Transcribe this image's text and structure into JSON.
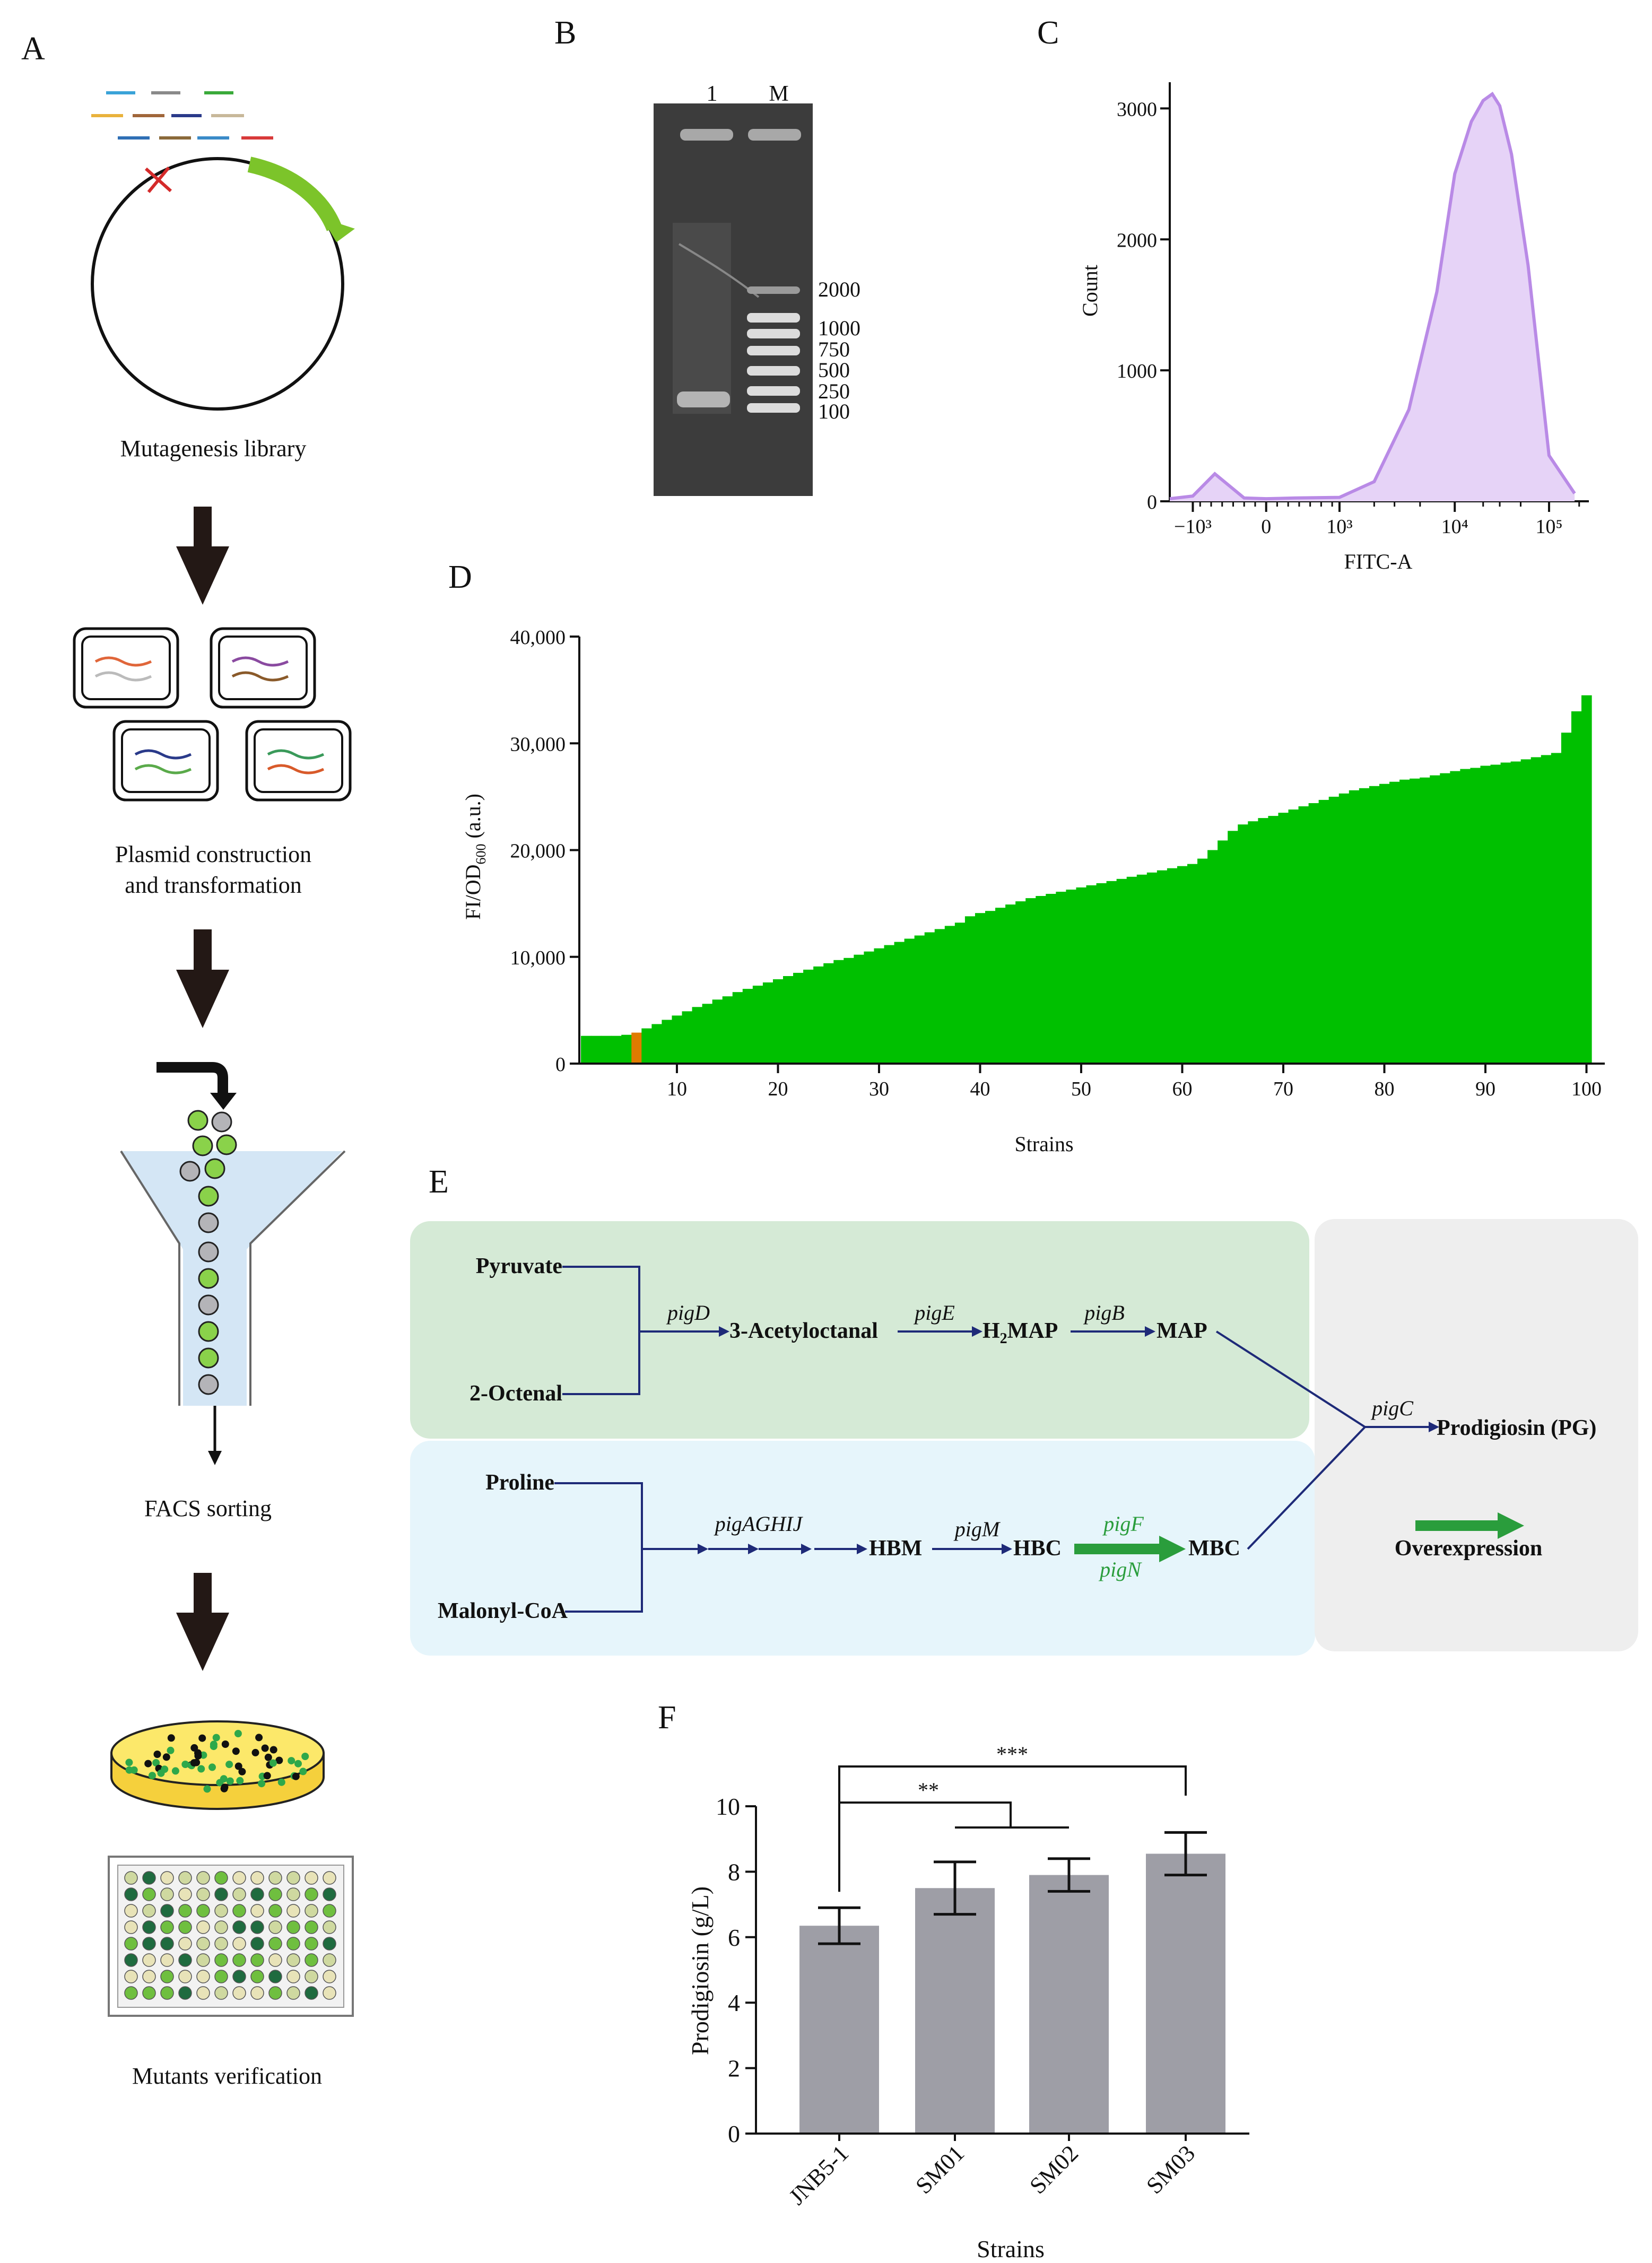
{
  "colors": {
    "ink": "#111111",
    "panel_a_arrow": "#231815",
    "gel_bg": "#3c3c3c",
    "flow_line": "#b98ae6",
    "flow_fill": "#e6d3f7",
    "bar_green": "#00c000",
    "bar_highlight": "#e07b00",
    "pathway_green_box": "#d5ead6",
    "pathway_blue_box": "#e6f5fb",
    "pathway_gray_box": "#eeeeee",
    "pathway_arrow": "#1e2a78",
    "overexpression": "#2a9d3c",
    "bar_gray": "#9e9ea6"
  },
  "panel_labels": {
    "a": "A",
    "b": "B",
    "c": "C",
    "d": "D",
    "e": "E",
    "f": "F"
  },
  "panel_a": {
    "step1": "Mutagenesis library",
    "step2_line1": "Plasmid construction",
    "step2_line2": "and transformation",
    "step3": "FACS sorting",
    "step4": "Mutants verification",
    "fragment_colors": [
      "#3aa3d8",
      "#8a8a8a",
      "#3aaa3a",
      "#e9b23c",
      "#a0663a",
      "#2a3a8a",
      "#c8b89a",
      "#2f6fb5",
      "#8a6a3a",
      "#3a8ac8",
      "#d83a3a"
    ],
    "plate_well_colors": [
      "#1f6b3f",
      "#6fbf3f",
      "#cfd9a0",
      "#e8e3b8"
    ]
  },
  "panel_b": {
    "lane_labels": [
      "1",
      "M"
    ],
    "marker_labels": [
      "2000",
      "1000",
      "750",
      "500",
      "250",
      "100"
    ]
  },
  "panel_c": {
    "chart_data": {
      "type": "area",
      "xlabel": "FITC-A",
      "ylabel": "Count",
      "y_ticks": [
        "0",
        "1000",
        "2000",
        "3000"
      ],
      "x_ticks": [
        "−10³",
        "0",
        "10³",
        "10⁴",
        "10⁵"
      ],
      "ylim": [
        0,
        3000
      ],
      "x": [
        -1500,
        -1000,
        -700,
        -300,
        0,
        400,
        1000,
        2000,
        4000,
        7000,
        10000,
        15000,
        20000,
        25000,
        30000,
        40000,
        60000,
        100000,
        180000
      ],
      "values": [
        20,
        40,
        210,
        25,
        20,
        25,
        30,
        150,
        700,
        1600,
        2500,
        2900,
        3060,
        3110,
        3020,
        2650,
        1800,
        350,
        60
      ]
    }
  },
  "panel_d": {
    "chart_data": {
      "type": "bar",
      "xlabel": "Strains",
      "ylabel": "FI/OD",
      "ylabel_sub": "600",
      "ylabel_unit": " (a.u.)",
      "y_ticks": [
        "0",
        "10,000",
        "20,000",
        "30,000",
        "40,000"
      ],
      "x_ticks": [
        "10",
        "20",
        "30",
        "40",
        "50",
        "60",
        "70",
        "80",
        "90",
        "100"
      ],
      "ylim": [
        0,
        40000
      ],
      "highlight_strain": 6,
      "values": [
        2600,
        2600,
        2600,
        2600,
        2700,
        2900,
        3300,
        3700,
        4100,
        4500,
        4900,
        5300,
        5600,
        6000,
        6300,
        6700,
        7000,
        7300,
        7600,
        7900,
        8200,
        8500,
        8800,
        9100,
        9400,
        9700,
        9900,
        10200,
        10500,
        10800,
        11100,
        11400,
        11700,
        12000,
        12300,
        12600,
        12900,
        13200,
        13800,
        14100,
        14300,
        14600,
        14900,
        15200,
        15500,
        15700,
        15900,
        16100,
        16300,
        16500,
        16700,
        16900,
        17100,
        17300,
        17500,
        17700,
        17900,
        18100,
        18300,
        18500,
        18700,
        19200,
        20000,
        20900,
        21800,
        22400,
        22700,
        23000,
        23200,
        23500,
        23800,
        24100,
        24400,
        24700,
        25000,
        25300,
        25600,
        25800,
        26000,
        26200,
        26400,
        26600,
        26700,
        26800,
        27000,
        27200,
        27400,
        27600,
        27700,
        27900,
        28000,
        28200,
        28300,
        28500,
        28700,
        28900,
        29100,
        31000,
        33000,
        34500
      ]
    }
  },
  "panel_e": {
    "green_box": {
      "substrate1": "Pyruvate",
      "substrate2": "2-Octenal",
      "enzyme1": "pigD",
      "intermediate1": "3-Acetyloctanal",
      "enzyme2": "pigE",
      "intermediate2_main": "H",
      "intermediate2_sub": "2",
      "intermediate2_rest": "MAP",
      "enzyme3": "pigB",
      "intermediate3": "MAP"
    },
    "blue_box": {
      "substrate1": "Proline",
      "substrate2": "Malonyl-CoA",
      "enzyme1": "pigAGHIJ",
      "intermediate1": "HBM",
      "enzyme2": "pigM",
      "intermediate2": "HBC",
      "enzyme3a": "pigF",
      "enzyme3b": "pigN",
      "intermediate3": "MBC"
    },
    "gray_box": {
      "enzyme": "pigC",
      "product": "Prodigiosin (PG)",
      "legend": "Overexpression"
    }
  },
  "panel_f": {
    "chart_data": {
      "type": "bar",
      "categories": [
        "JNB5-1",
        "SM01",
        "SM02",
        "SM03"
      ],
      "values": [
        6.35,
        7.5,
        7.9,
        8.55
      ],
      "errors": [
        0.55,
        0.8,
        0.5,
        0.65
      ],
      "ylabel": "Prodigiosin (g/L)",
      "xlabel": "Strains",
      "ylim": [
        0,
        10
      ],
      "y_ticks": [
        "0",
        "2",
        "4",
        "6",
        "8",
        "10"
      ],
      "significance": [
        "**",
        "***"
      ]
    }
  }
}
